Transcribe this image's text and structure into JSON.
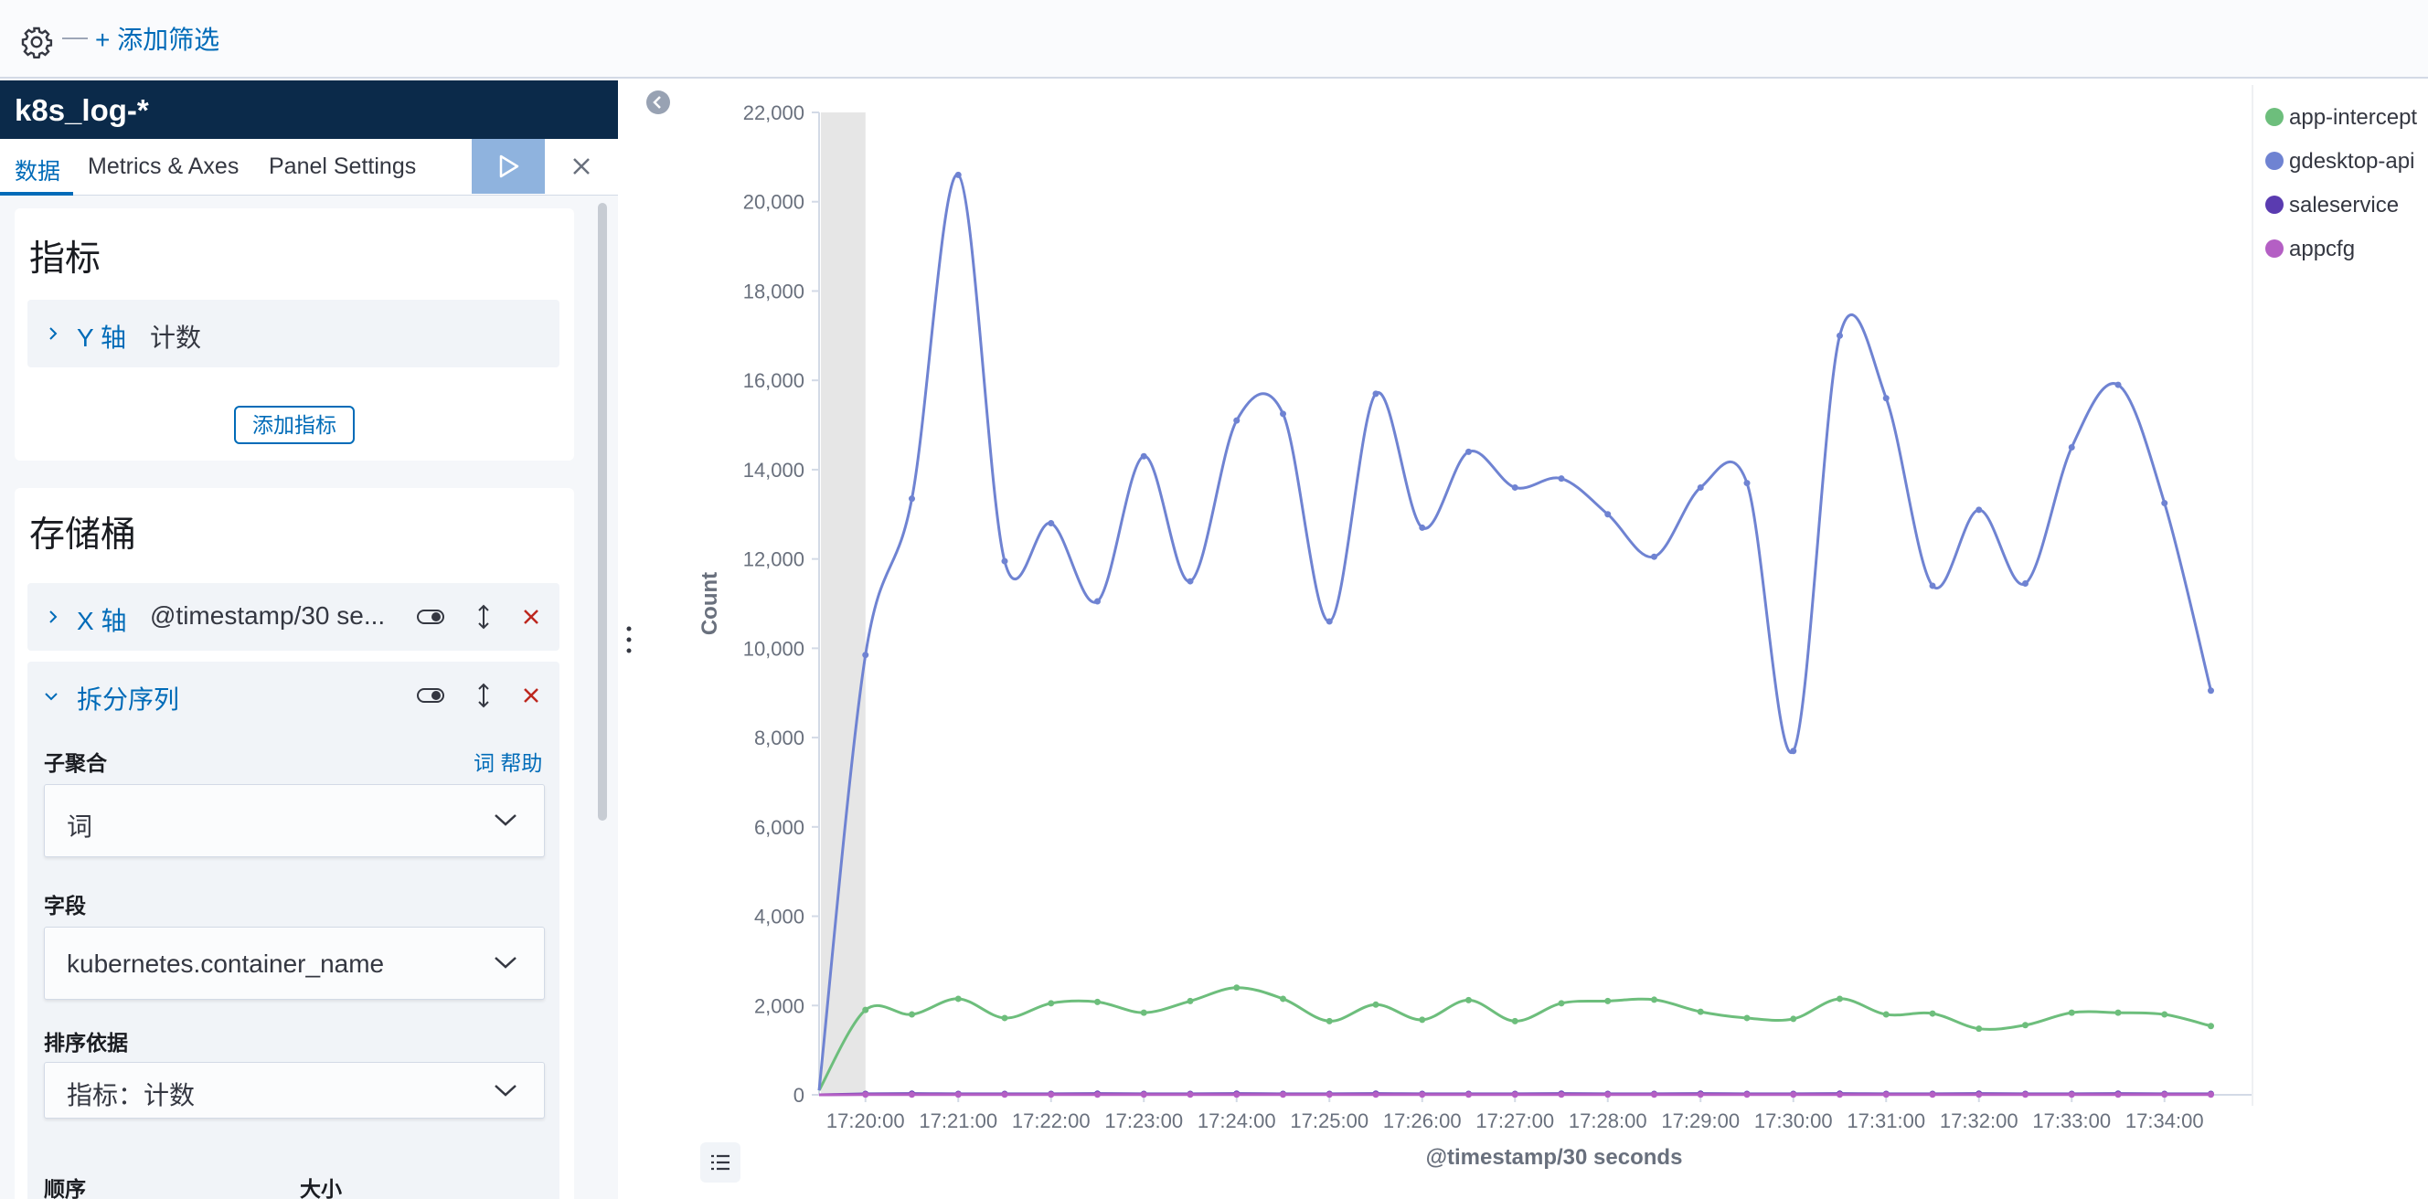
{
  "filter_bar": {
    "add_filter_label": "+ 添加筛选"
  },
  "editor": {
    "index_pattern": "k8s_log-*",
    "tabs": [
      {
        "label": "数据",
        "active": true
      },
      {
        "label": "Metrics & Axes",
        "active": false
      },
      {
        "label": "Panel Settings",
        "active": false
      }
    ],
    "metrics": {
      "title": "指标",
      "y_axis": {
        "label": "Y 轴",
        "text": "计数"
      },
      "add_button": "添加指标"
    },
    "buckets": {
      "title": "存储桶",
      "x_axis": {
        "label": "X 轴",
        "text": "@timestamp/30 se..."
      },
      "split_series": {
        "label": "拆分序列",
        "sub_aggregation_label": "子聚合",
        "help_link": "词 帮助",
        "sub_aggregation_value": "词",
        "field_label": "字段",
        "field_value": "kubernetes.container_name",
        "order_by_label": "排序依据",
        "order_by_value": "指标：计数",
        "order_label": "顺序",
        "size_label": "大小"
      }
    }
  },
  "colors": {
    "accent": "#006bb8",
    "header": "#0b2a4a",
    "delete": "#bd271e",
    "series_green": "#6dbe7c",
    "series_blue": "#6f83d2",
    "series_purple": "#5a3bb0",
    "series_pink": "#b45fc4"
  },
  "chart_data": {
    "type": "line",
    "xlabel": "@timestamp/30 seconds",
    "ylabel": "Count",
    "ylim": [
      0,
      22000
    ],
    "yticks": [
      0,
      2000,
      4000,
      6000,
      8000,
      10000,
      12000,
      14000,
      16000,
      18000,
      20000,
      22000
    ],
    "x_tick_labels": [
      "17:20:00",
      "17:21:00",
      "17:22:00",
      "17:23:00",
      "17:24:00",
      "17:25:00",
      "17:26:00",
      "17:27:00",
      "17:28:00",
      "17:29:00",
      "17:30:00",
      "17:31:00",
      "17:32:00",
      "17:33:00",
      "17:34:00"
    ],
    "x": [
      "17:19:30",
      "17:20:00",
      "17:20:30",
      "17:21:00",
      "17:21:30",
      "17:22:00",
      "17:22:30",
      "17:23:00",
      "17:23:30",
      "17:24:00",
      "17:24:30",
      "17:25:00",
      "17:25:30",
      "17:26:00",
      "17:26:30",
      "17:27:00",
      "17:27:30",
      "17:28:00",
      "17:28:30",
      "17:29:00",
      "17:29:30",
      "17:30:00",
      "17:30:30",
      "17:31:00",
      "17:31:30",
      "17:32:00",
      "17:32:30",
      "17:33:00",
      "17:33:30",
      "17:34:00",
      "17:34:30"
    ],
    "partial_bucket": "17:19:30",
    "legend_position": "right",
    "grid": false,
    "series": [
      {
        "name": "app-intercept",
        "color": "#6dbe7c",
        "values": [
          100,
          1900,
          1800,
          2150,
          1720,
          2050,
          2080,
          1840,
          2100,
          2400,
          2150,
          1650,
          2020,
          1680,
          2120,
          1650,
          2050,
          2100,
          2130,
          1860,
          1720,
          1700,
          2150,
          1800,
          1820,
          1480,
          1560,
          1840,
          1840,
          1800,
          1540
        ]
      },
      {
        "name": "gdesktop-api",
        "color": "#6f83d2",
        "values": [
          100,
          9850,
          13350,
          20600,
          11950,
          12800,
          11050,
          14300,
          11500,
          15100,
          15250,
          10600,
          15700,
          12700,
          14400,
          13600,
          13800,
          13000,
          12050,
          13600,
          13700,
          7700,
          17000,
          15600,
          11400,
          13100,
          11450,
          14500,
          15900,
          13250,
          9050
        ]
      },
      {
        "name": "saleservice",
        "color": "#5a3bb0",
        "values": [
          0,
          20,
          25,
          20,
          20,
          20,
          25,
          20,
          20,
          25,
          20,
          20,
          25,
          20,
          20,
          20,
          25,
          20,
          20,
          25,
          20,
          20,
          25,
          20,
          20,
          25,
          20,
          20,
          25,
          20,
          20
        ]
      },
      {
        "name": "appcfg",
        "color": "#b45fc4",
        "values": [
          0,
          5,
          5,
          5,
          5,
          5,
          5,
          5,
          5,
          5,
          5,
          5,
          5,
          5,
          5,
          5,
          5,
          5,
          5,
          5,
          5,
          5,
          5,
          5,
          5,
          5,
          5,
          5,
          5,
          5,
          5
        ]
      }
    ]
  }
}
